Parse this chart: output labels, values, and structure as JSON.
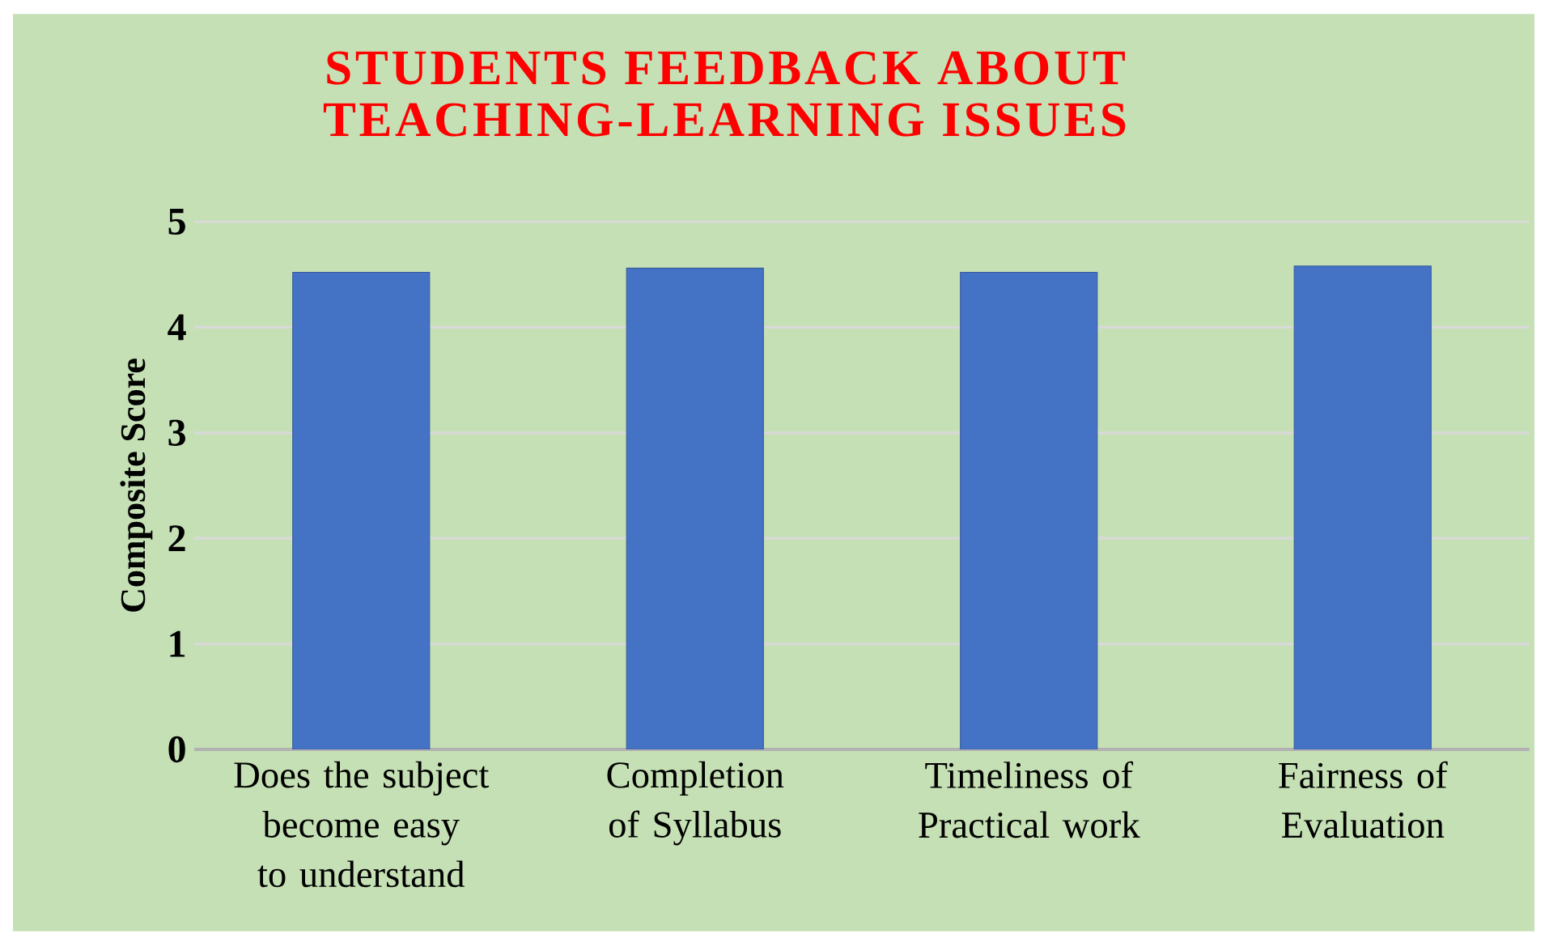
{
  "chart_data": {
    "type": "bar",
    "title": "STUDENTS FEEDBACK ABOUT TEACHING-LEARNING ISSUES",
    "ylabel": "Composite Score",
    "categories": [
      "Does the subject become easy to understand",
      "Completion of Syllabus",
      "Timeliness of Practical work",
      "Fairness of Evaluation"
    ],
    "values": [
      4.52,
      4.56,
      4.52,
      4.58
    ],
    "color": "#4472c4",
    "ylim": [
      0,
      5
    ],
    "yticks": [
      0,
      1,
      2,
      3,
      4,
      5
    ],
    "grid": "y"
  }
}
